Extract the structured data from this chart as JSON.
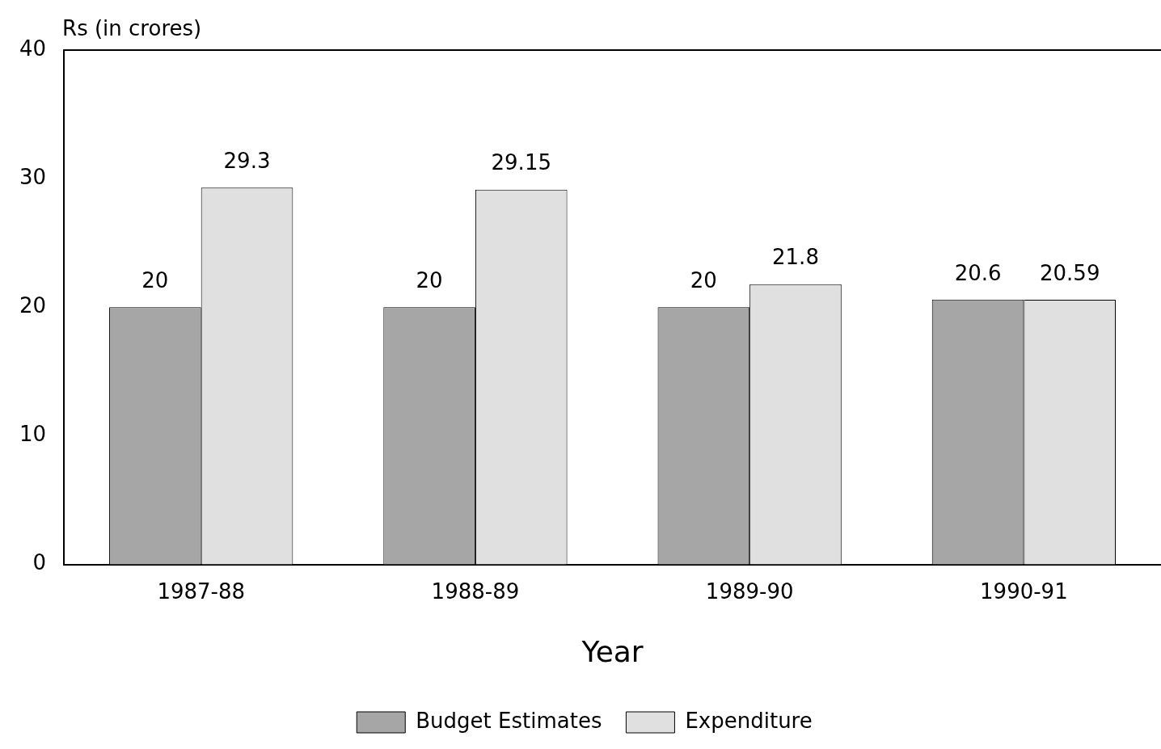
{
  "chart_data": {
    "type": "bar",
    "ylabel": "Rs (in crores)",
    "xlabel": "Year",
    "categories": [
      "1987-88",
      "1988-89",
      "1989-90",
      "1990-91"
    ],
    "series": [
      {
        "name": "Budget Estimates",
        "color": "#a6a6a6",
        "values": [
          20,
          20,
          20,
          20.6
        ]
      },
      {
        "name": "Expenditure",
        "color": "#e0e0e0",
        "values": [
          29.3,
          29.15,
          21.8,
          20.59
        ]
      }
    ],
    "ylim": [
      0,
      40
    ],
    "yticks": [
      0,
      10,
      20,
      30,
      40
    ],
    "grid": false,
    "legend": "bottom",
    "data_labels": true
  }
}
